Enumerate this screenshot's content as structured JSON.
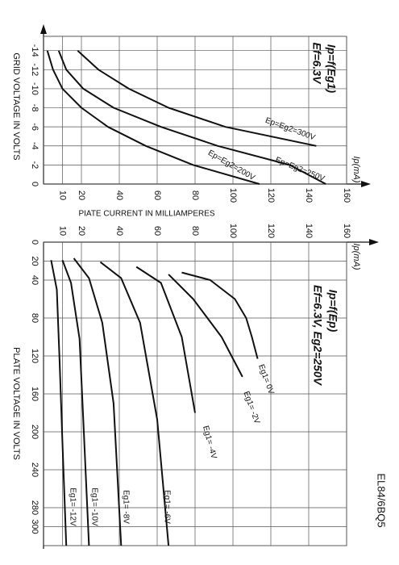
{
  "model": "EL84/6BQ5",
  "chart_data": [
    {
      "type": "line",
      "title": "Ip=f(Eg1)",
      "subtitle": "Ef=6.3V",
      "x_label": "GRID VOLTAGE IN VOLTS",
      "y_label": "PIATE CURRENT IN MILLIAMPERES",
      "y_unit": "Ip(mA)",
      "x": [
        -14,
        -12,
        -10,
        -8,
        -6,
        -4,
        -2,
        0
      ],
      "xlim": [
        -15.5,
        0
      ],
      "xticks": [
        -14,
        -12,
        -10,
        -8,
        -6,
        -4,
        -2,
        0
      ],
      "ylim": [
        0,
        160
      ],
      "yticks": [
        10,
        20,
        40,
        60,
        80,
        100,
        120,
        140,
        160
      ],
      "series": [
        {
          "name": "Ep=Eg2=300V",
          "color": "#111111",
          "values": [
            18,
            29,
            45,
            66,
            96,
            144,
            null,
            null
          ]
        },
        {
          "name": "Ep=Eg2=250V",
          "color": "#111111",
          "values": [
            8,
            12,
            21,
            37,
            62,
            92,
            130,
            149
          ]
        },
        {
          "name": "Ep=Eg2=200V",
          "color": "#111111",
          "values": [
            2,
            5,
            10,
            20,
            34,
            54,
            79,
            114
          ]
        }
      ]
    },
    {
      "type": "line",
      "title": "Ip=f(Ep)",
      "subtitle": "Ef=6.3V, Eg2=250V",
      "x_label": "PLATE VOLTAGE IN VOLTS",
      "y_unit": "Ip(mA)",
      "xlim": [
        0,
        320
      ],
      "xticks": [
        0,
        20,
        40,
        80,
        120,
        160,
        200,
        240,
        280,
        300
      ],
      "ylim": [
        0,
        160
      ],
      "yticks": [
        10,
        20,
        40,
        60,
        80,
        100,
        120,
        140,
        160
      ],
      "series": [
        {
          "name": "Eg1= 0V",
          "color": "#111111",
          "x": [
            32,
            40,
            60,
            80,
            100,
            123
          ],
          "values": [
            73,
            88,
            101,
            107,
            110,
            113
          ]
        },
        {
          "name": "Eg1= -2V",
          "color": "#111111",
          "x": [
            34,
            60,
            100,
            142
          ],
          "values": [
            66,
            79,
            94,
            105
          ]
        },
        {
          "name": "Eg1= -4V",
          "color": "#111111",
          "x": [
            26,
            43,
            100,
            180
          ],
          "values": [
            49,
            62,
            73,
            80
          ]
        },
        {
          "name": "Eg1= -6V",
          "color": "#111111",
          "x": [
            21,
            38,
            85,
            187,
            320
          ],
          "values": [
            30,
            41,
            51,
            60,
            66
          ]
        },
        {
          "name": "Eg1= -8V",
          "color": "#111111",
          "x": [
            17,
            38,
            85,
            170,
            320
          ],
          "values": [
            16,
            24,
            31,
            37,
            41
          ]
        },
        {
          "name": "Eg1= -10V",
          "color": "#111111",
          "x": [
            19,
            43,
            102,
            187,
            320
          ],
          "values": [
            10,
            14.5,
            19,
            21,
            24
          ]
        },
        {
          "name": "Eg1= -12V",
          "color": "#111111",
          "x": [
            19,
            50,
            127,
            212,
            320
          ],
          "values": [
            4,
            7,
            8.5,
            10,
            12
          ]
        }
      ]
    }
  ]
}
